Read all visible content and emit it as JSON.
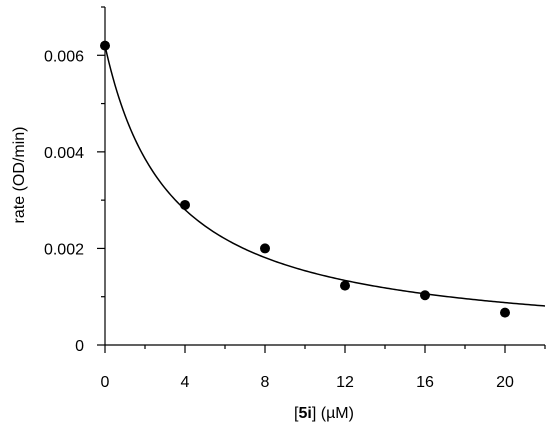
{
  "chart_data": {
    "type": "scatter",
    "title": "",
    "xlabel": {
      "prefix": "[",
      "bold": "5i",
      "suffix": "] (µM)"
    },
    "ylabel": "rate (OD/min)",
    "xlim": [
      0,
      22
    ],
    "ylim": [
      0,
      0.007
    ],
    "x_ticks": [
      0,
      4,
      8,
      12,
      16,
      20
    ],
    "x_tick_labels": [
      "0",
      "4",
      "8",
      "12",
      "16",
      "20"
    ],
    "x_minor_ticks": [
      2,
      6,
      10,
      14,
      18,
      22
    ],
    "y_ticks": [
      0,
      0.002,
      0.004,
      0.006
    ],
    "y_tick_labels": [
      "0",
      "0.002",
      "0.004",
      "0.006"
    ],
    "y_minor_ticks": [
      0.001,
      0.003,
      0.005,
      0.007
    ],
    "grid": false,
    "series": [
      {
        "style": "markers",
        "color": "#000000",
        "x": [
          0,
          4,
          8,
          12,
          16,
          20
        ],
        "y": [
          0.0062,
          0.0029,
          0.002,
          0.00123,
          0.00103,
          0.00067
        ]
      }
    ],
    "fit": {
      "style": "line",
      "color": "#000000",
      "model": "y = y0 / (1 + x / IC50)",
      "y0": 0.0062,
      "ic50": 3.3
    }
  }
}
